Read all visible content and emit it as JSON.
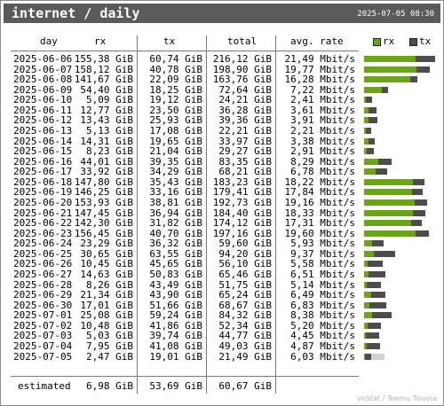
{
  "header": {
    "title": "internet / daily",
    "timestamp": "2025-07-05 08:30"
  },
  "columns": {
    "day": "day",
    "rx": "rx",
    "tx": "tx",
    "total": "total",
    "rate": "avg. rate"
  },
  "legend": {
    "rx": "rx",
    "tx": "tx",
    "rx_color": "#6ba31a",
    "tx_color": "#4d4d4d"
  },
  "rows": [
    {
      "day": "2025-06-06",
      "rx": "155,38 GiB",
      "tx": "60,74 GiB",
      "total": "216,12 GiB",
      "rate": "21,49 Mbit/s",
      "rx_gib": 155.38,
      "tx_gib": 60.74
    },
    {
      "day": "2025-06-07",
      "rx": "158,12 GiB",
      "tx": "40,78 GiB",
      "total": "198,90 GiB",
      "rate": "19,77 Mbit/s",
      "rx_gib": 158.12,
      "tx_gib": 40.78
    },
    {
      "day": "2025-06-08",
      "rx": "141,67 GiB",
      "tx": "22,09 GiB",
      "total": "163,76 GiB",
      "rate": "16,28 Mbit/s",
      "rx_gib": 141.67,
      "tx_gib": 22.09
    },
    {
      "day": "2025-06-09",
      "rx": "54,40 GiB",
      "tx": "18,25 GiB",
      "total": "72,64 GiB",
      "rate": "7,22 Mbit/s",
      "rx_gib": 54.4,
      "tx_gib": 18.25
    },
    {
      "day": "2025-06-10",
      "rx": "5,09 GiB",
      "tx": "19,12 GiB",
      "total": "24,21 GiB",
      "rate": "2,41 Mbit/s",
      "rx_gib": 5.09,
      "tx_gib": 19.12
    },
    {
      "day": "2025-06-11",
      "rx": "12,77 GiB",
      "tx": "23,50 GiB",
      "total": "36,28 GiB",
      "rate": "3,61 Mbit/s",
      "rx_gib": 12.77,
      "tx_gib": 23.5
    },
    {
      "day": "2025-06-12",
      "rx": "13,43 GiB",
      "tx": "25,93 GiB",
      "total": "39,36 GiB",
      "rate": "3,91 Mbit/s",
      "rx_gib": 13.43,
      "tx_gib": 25.93
    },
    {
      "day": "2025-06-13",
      "rx": "5,13 GiB",
      "tx": "17,08 GiB",
      "total": "22,21 GiB",
      "rate": "2,21 Mbit/s",
      "rx_gib": 5.13,
      "tx_gib": 17.08
    },
    {
      "day": "2025-06-14",
      "rx": "14,31 GiB",
      "tx": "19,65 GiB",
      "total": "33,97 GiB",
      "rate": "3,38 Mbit/s",
      "rx_gib": 14.31,
      "tx_gib": 19.65
    },
    {
      "day": "2025-06-15",
      "rx": "8,23 GiB",
      "tx": "21,04 GiB",
      "total": "29,27 GiB",
      "rate": "2,91 Mbit/s",
      "rx_gib": 8.23,
      "tx_gib": 21.04
    },
    {
      "day": "2025-06-16",
      "rx": "44,01 GiB",
      "tx": "39,35 GiB",
      "total": "83,35 GiB",
      "rate": "8,29 Mbit/s",
      "rx_gib": 44.01,
      "tx_gib": 39.35
    },
    {
      "day": "2025-06-17",
      "rx": "33,92 GiB",
      "tx": "34,29 GiB",
      "total": "68,21 GiB",
      "rate": "6,78 Mbit/s",
      "rx_gib": 33.92,
      "tx_gib": 34.29
    },
    {
      "day": "2025-06-18",
      "rx": "147,80 GiB",
      "tx": "35,43 GiB",
      "total": "183,23 GiB",
      "rate": "18,22 Mbit/s",
      "rx_gib": 147.8,
      "tx_gib": 35.43
    },
    {
      "day": "2025-06-19",
      "rx": "146,25 GiB",
      "tx": "33,16 GiB",
      "total": "179,41 GiB",
      "rate": "17,84 Mbit/s",
      "rx_gib": 146.25,
      "tx_gib": 33.16
    },
    {
      "day": "2025-06-20",
      "rx": "153,93 GiB",
      "tx": "38,81 GiB",
      "total": "192,73 GiB",
      "rate": "19,16 Mbit/s",
      "rx_gib": 153.93,
      "tx_gib": 38.81
    },
    {
      "day": "2025-06-21",
      "rx": "147,45 GiB",
      "tx": "36,94 GiB",
      "total": "184,40 GiB",
      "rate": "18,33 Mbit/s",
      "rx_gib": 147.45,
      "tx_gib": 36.94
    },
    {
      "day": "2025-06-22",
      "rx": "142,30 GiB",
      "tx": "31,82 GiB",
      "total": "174,12 GiB",
      "rate": "17,31 Mbit/s",
      "rx_gib": 142.3,
      "tx_gib": 31.82
    },
    {
      "day": "2025-06-23",
      "rx": "156,45 GiB",
      "tx": "40,70 GiB",
      "total": "197,16 GiB",
      "rate": "19,60 Mbit/s",
      "rx_gib": 156.45,
      "tx_gib": 40.7
    },
    {
      "day": "2025-06-24",
      "rx": "23,29 GiB",
      "tx": "36,32 GiB",
      "total": "59,60 GiB",
      "rate": "5,93 Mbit/s",
      "rx_gib": 23.29,
      "tx_gib": 36.32
    },
    {
      "day": "2025-06-25",
      "rx": "30,65 GiB",
      "tx": "63,55 GiB",
      "total": "94,20 GiB",
      "rate": "9,37 Mbit/s",
      "rx_gib": 30.65,
      "tx_gib": 63.55
    },
    {
      "day": "2025-06-26",
      "rx": "10,45 GiB",
      "tx": "45,65 GiB",
      "total": "56,10 GiB",
      "rate": "5,58 Mbit/s",
      "rx_gib": 10.45,
      "tx_gib": 45.65
    },
    {
      "day": "2025-06-27",
      "rx": "14,63 GiB",
      "tx": "50,83 GiB",
      "total": "65,46 GiB",
      "rate": "6,51 Mbit/s",
      "rx_gib": 14.63,
      "tx_gib": 50.83
    },
    {
      "day": "2025-06-28",
      "rx": "8,26 GiB",
      "tx": "43,49 GiB",
      "total": "51,75 GiB",
      "rate": "5,14 Mbit/s",
      "rx_gib": 8.26,
      "tx_gib": 43.49
    },
    {
      "day": "2025-06-29",
      "rx": "21,34 GiB",
      "tx": "43,90 GiB",
      "total": "65,24 GiB",
      "rate": "6,49 Mbit/s",
      "rx_gib": 21.34,
      "tx_gib": 43.9
    },
    {
      "day": "2025-06-30",
      "rx": "17,01 GiB",
      "tx": "51,66 GiB",
      "total": "68,67 GiB",
      "rate": "6,83 Mbit/s",
      "rx_gib": 17.01,
      "tx_gib": 51.66
    },
    {
      "day": "2025-07-01",
      "rx": "25,08 GiB",
      "tx": "59,24 GiB",
      "total": "84,32 GiB",
      "rate": "8,38 Mbit/s",
      "rx_gib": 25.08,
      "tx_gib": 59.24
    },
    {
      "day": "2025-07-02",
      "rx": "10,48 GiB",
      "tx": "41,86 GiB",
      "total": "52,34 GiB",
      "rate": "5,20 Mbit/s",
      "rx_gib": 10.48,
      "tx_gib": 41.86
    },
    {
      "day": "2025-07-03",
      "rx": "5,03 GiB",
      "tx": "39,74 GiB",
      "total": "44,77 GiB",
      "rate": "4,45 Mbit/s",
      "rx_gib": 5.03,
      "tx_gib": 39.74
    },
    {
      "day": "2025-07-04",
      "rx": "7,95 GiB",
      "tx": "41,08 GiB",
      "total": "49,03 GiB",
      "rate": "4,87 Mbit/s",
      "rx_gib": 7.95,
      "tx_gib": 41.08
    },
    {
      "day": "2025-07-05",
      "rx": "2,47 GiB",
      "tx": "19,01 GiB",
      "total": "21,49 GiB",
      "rate": "6,03 Mbit/s",
      "rx_gib": 2.47,
      "tx_gib": 19.01
    }
  ],
  "estimate": {
    "label": "estimated",
    "rx": "6,98 GiB",
    "tx": "53,69 GiB",
    "total": "60,67 GiB",
    "total_gib": 60.67
  },
  "footer": "vnStat / Teemu Toivola"
}
